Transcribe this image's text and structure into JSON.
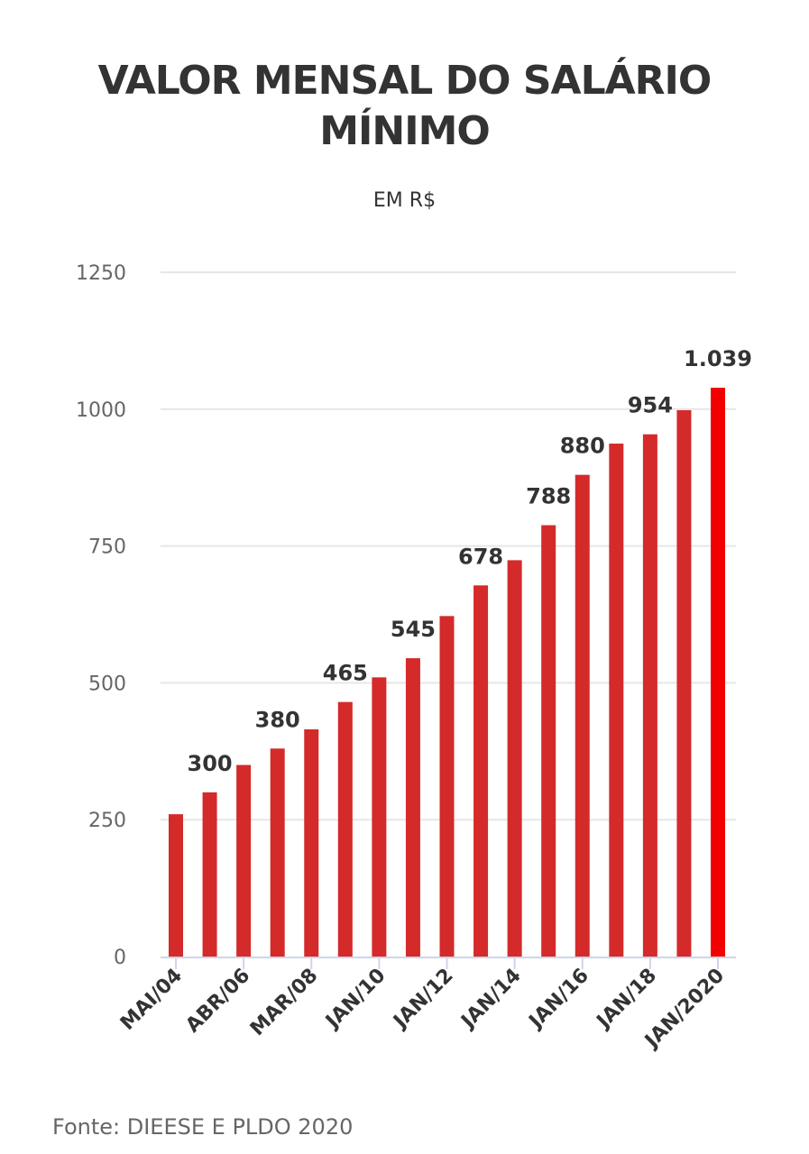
{
  "title": "VALOR MENSAL DO SALÁRIO MÍNIMO",
  "title_lines": [
    "VALOR MENSAL DO SALÁRIO",
    "MÍNIMO"
  ],
  "subtitle": "EM R$",
  "source": "Fonte: DIEESE E PLDO 2020",
  "colors": {
    "bar": "#d42a2a",
    "highlight": "#f20000",
    "grid": "#e6e6e6",
    "axis": "#ccd6eb",
    "text": "#333333",
    "tick_text": "#666666"
  },
  "chart_data": {
    "type": "bar",
    "title": "VALOR MENSAL DO SALÁRIO MÍNIMO",
    "subtitle": "EM R$",
    "xlabel": "",
    "ylabel": "",
    "ylim": [
      0,
      1250
    ],
    "y_ticks": [
      0,
      250,
      500,
      750,
      1000,
      1250
    ],
    "grid": true,
    "categories": [
      "MAI/04",
      "",
      "ABR/06",
      "",
      "MAR/08",
      "",
      "JAN/10",
      "",
      "JAN/12",
      "",
      "JAN/14",
      "",
      "JAN/16",
      "",
      "JAN/18",
      "",
      "JAN/2020"
    ],
    "x_tick_labels": [
      "MAI/04",
      "ABR/06",
      "MAR/08",
      "JAN/10",
      "JAN/12",
      "JAN/14",
      "JAN/16",
      "JAN/18",
      "JAN/2020"
    ],
    "values": [
      260,
      300,
      350,
      380,
      415,
      465,
      510,
      545,
      622,
      678,
      724,
      788,
      880,
      937,
      954,
      998,
      1039
    ],
    "data_labels": [
      {
        "index": 1,
        "text": "300"
      },
      {
        "index": 3,
        "text": "380"
      },
      {
        "index": 5,
        "text": "465"
      },
      {
        "index": 7,
        "text": "545"
      },
      {
        "index": 9,
        "text": "678"
      },
      {
        "index": 11,
        "text": "788"
      },
      {
        "index": 12,
        "text": "880"
      },
      {
        "index": 14,
        "text": "954"
      },
      {
        "index": 16,
        "text": "1.039"
      }
    ],
    "highlight_index": 16
  }
}
